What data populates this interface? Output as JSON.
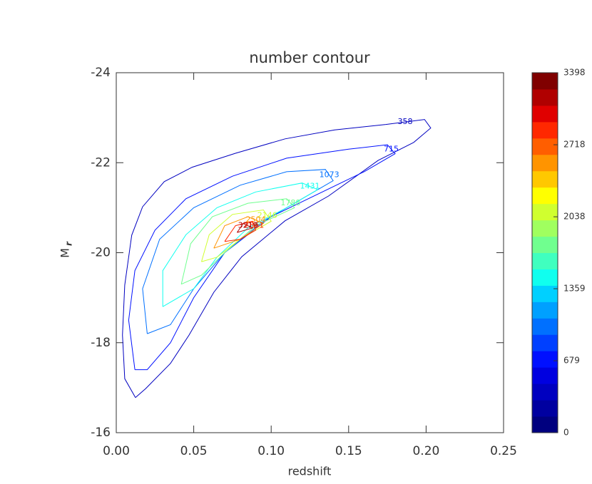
{
  "chart_data": {
    "type": "contour",
    "title": "number contour",
    "xlabel": "redshift",
    "ylabel": "M",
    "ylabel_subscript": "r",
    "xlim": [
      0,
      0.25
    ],
    "xticks": [
      {
        "value": 0,
        "label": "0.00"
      },
      {
        "value": 0.05,
        "label": "0.05"
      },
      {
        "value": 0.1,
        "label": "0.10"
      },
      {
        "value": 0.15,
        "label": "0.15"
      },
      {
        "value": 0.2,
        "label": "0.20"
      },
      {
        "value": 0.25,
        "label": "0.25"
      }
    ],
    "ylim": [
      -16,
      -24
    ],
    "yticks": [
      -24,
      -22,
      -20,
      -18,
      -16
    ],
    "colorbar_lim": [
      0,
      3398
    ],
    "colorbar_ticks": [
      0,
      679,
      1359,
      2038,
      2718,
      3398
    ],
    "colorbar_colors": [
      "#00007f",
      "#0000a0",
      "#0000c0",
      "#0000e0",
      "#0010ff",
      "#0040ff",
      "#0070ff",
      "#00a0ff",
      "#00d0ff",
      "#10ffef",
      "#40ffbf",
      "#70ff8f",
      "#a0ff5f",
      "#d0ff2f",
      "#ffff00",
      "#ffc800",
      "#ff9400",
      "#ff5e00",
      "#ff2800",
      "#e00000",
      "#b00000",
      "#800000"
    ],
    "contours": [
      {
        "level": 358,
        "x": [
          0.0124,
          0.0055,
          0.004,
          0.0055,
          0.01,
          0.017,
          0.031,
          0.049,
          0.077,
          0.109,
          0.141,
          0.174,
          0.199,
          0.203,
          0.192,
          0.169,
          0.137,
          0.109,
          0.081,
          0.063,
          0.047,
          0.035,
          0.019,
          0.0124
        ],
        "y": [
          -16.78,
          -17.2,
          -18.17,
          -19.28,
          -20.39,
          -21.02,
          -21.58,
          -21.9,
          -22.21,
          -22.53,
          -22.73,
          -22.85,
          -22.96,
          -22.77,
          -22.45,
          -22.05,
          -21.26,
          -20.71,
          -19.91,
          -19.12,
          -18.17,
          -17.54,
          -16.98,
          -16.78
        ]
      },
      {
        "level": 715,
        "x": [
          0.012,
          0.008,
          0.012,
          0.025,
          0.045,
          0.075,
          0.11,
          0.15,
          0.175,
          0.18,
          0.16,
          0.13,
          0.1,
          0.07,
          0.05,
          0.035,
          0.02,
          0.012
        ],
        "y": [
          -17.4,
          -18.5,
          -19.6,
          -20.5,
          -21.2,
          -21.7,
          -22.1,
          -22.3,
          -22.4,
          -22.2,
          -21.8,
          -21.3,
          -20.8,
          -20.0,
          -19.0,
          -18.0,
          -17.4,
          -17.4
        ]
      },
      {
        "level": 1073,
        "x": [
          0.02,
          0.017,
          0.028,
          0.05,
          0.08,
          0.11,
          0.135,
          0.14,
          0.12,
          0.095,
          0.07,
          0.05,
          0.035,
          0.02
        ],
        "y": [
          -18.2,
          -19.2,
          -20.3,
          -21.0,
          -21.5,
          -21.8,
          -21.85,
          -21.6,
          -21.2,
          -20.7,
          -20.0,
          -19.2,
          -18.4,
          -18.2
        ]
      },
      {
        "level": 1431,
        "x": [
          0.03,
          0.03,
          0.045,
          0.065,
          0.09,
          0.12,
          0.13,
          0.11,
          0.085,
          0.065,
          0.05,
          0.03
        ],
        "y": [
          -18.8,
          -19.6,
          -20.4,
          -21.0,
          -21.35,
          -21.55,
          -21.4,
          -21.0,
          -20.55,
          -19.9,
          -19.2,
          -18.8
        ]
      },
      {
        "level": 1788,
        "x": [
          0.042,
          0.048,
          0.062,
          0.085,
          0.11,
          0.115,
          0.09,
          0.07,
          0.055,
          0.042
        ],
        "y": [
          -19.3,
          -20.2,
          -20.8,
          -21.1,
          -21.2,
          -21.0,
          -20.6,
          -20.0,
          -19.5,
          -19.3
        ]
      },
      {
        "level": 2146,
        "x": [
          0.055,
          0.06,
          0.075,
          0.095,
          0.1,
          0.08,
          0.065,
          0.055
        ],
        "y": [
          -19.8,
          -20.4,
          -20.85,
          -20.95,
          -20.7,
          -20.3,
          -19.9,
          -19.8
        ]
      },
      {
        "level": 2504,
        "x": [
          0.063,
          0.07,
          0.085,
          0.095,
          0.08,
          0.063
        ],
        "y": [
          -20.1,
          -20.6,
          -20.8,
          -20.65,
          -20.3,
          -20.1
        ]
      },
      {
        "level": 2861,
        "x": [
          0.07,
          0.077,
          0.088,
          0.09,
          0.08,
          0.07
        ],
        "y": [
          -20.25,
          -20.6,
          -20.7,
          -20.5,
          -20.3,
          -20.25
        ]
      },
      {
        "level": 3219,
        "x": [
          0.078,
          0.082,
          0.088,
          0.078
        ],
        "y": [
          -20.45,
          -20.65,
          -20.55,
          -20.45
        ]
      }
    ]
  }
}
